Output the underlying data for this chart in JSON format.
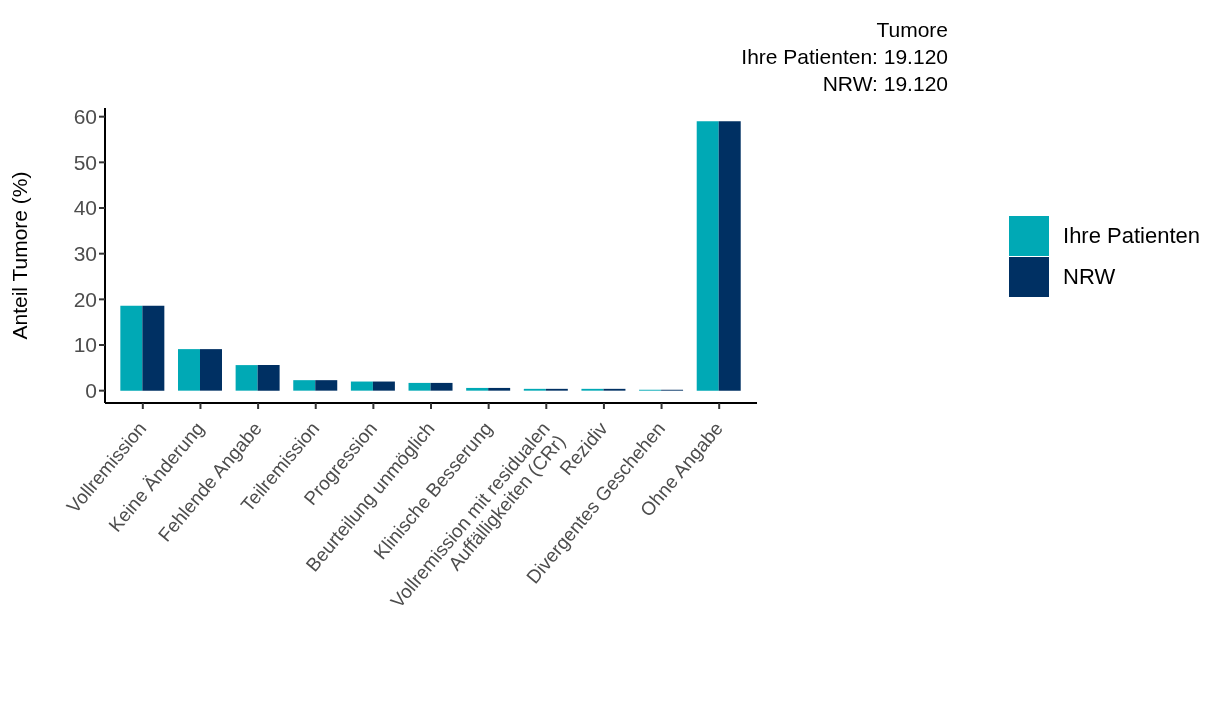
{
  "chart_data": {
    "type": "bar",
    "title": "Tumore",
    "subtitle": "Ihre Patienten: 19.120\nNRW: 19.120",
    "ylabel": "Anteil Tumore (%)",
    "categories": [
      "Vollremission",
      "Keine Änderung",
      "Fehlende Angabe",
      "Teilremission",
      "Progression",
      "Beurteilung unmöglich",
      "Klinische Besserung",
      "Vollremission mit residualen\nAuffälligkeiten (CRr)",
      "Rezidiv",
      "Divergentes Geschehen",
      "Ohne Angabe"
    ],
    "series": [
      {
        "name": "Ihre Patienten",
        "color": "#00a9b5",
        "values": [
          18.6,
          9.1,
          5.6,
          2.3,
          2.0,
          1.7,
          0.6,
          0.4,
          0.4,
          0.2,
          59.0
        ]
      },
      {
        "name": "NRW",
        "color": "#003063",
        "values": [
          18.6,
          9.1,
          5.6,
          2.3,
          2.0,
          1.7,
          0.6,
          0.4,
          0.4,
          0.2,
          59.0
        ]
      }
    ],
    "ylim": [
      -2.7,
      61.9
    ],
    "yticks": [
      0,
      10,
      20,
      30,
      40,
      50,
      60
    ],
    "grid": false,
    "legend": "right"
  }
}
